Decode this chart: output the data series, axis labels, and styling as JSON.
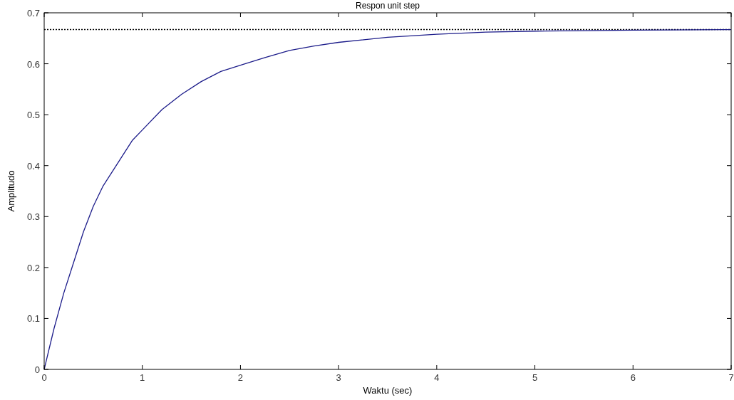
{
  "chart_data": {
    "type": "line",
    "title": "Respon unit step",
    "xlabel": "Waktu (sec)",
    "ylabel": "Amplitudo",
    "xlim": [
      0,
      7
    ],
    "xticks": [
      0,
      1,
      2,
      3,
      4,
      5,
      6,
      7
    ],
    "ylim": [
      0,
      0.7
    ],
    "yticks": [
      0,
      0.1,
      0.2,
      0.3,
      0.4,
      0.5,
      0.6,
      0.7
    ],
    "grid": false,
    "line_style": "solid",
    "x": [
      0,
      0.1,
      0.2,
      0.3,
      0.4,
      0.5,
      0.6,
      0.7,
      0.8,
      0.9,
      1.0,
      1.2,
      1.4,
      1.6,
      1.8,
      2.0,
      2.25,
      2.5,
      2.75,
      3.0,
      3.5,
      4.0,
      4.5,
      5.0,
      6.0,
      7.0
    ],
    "series": [
      {
        "color": "#1c1c8a",
        "values": [
          0,
          0.08,
          0.15,
          0.21,
          0.27,
          0.32,
          0.36,
          0.39,
          0.42,
          0.45,
          0.47,
          0.51,
          0.54,
          0.565,
          0.585,
          0.597,
          0.612,
          0.626,
          0.635,
          0.642,
          0.652,
          0.658,
          0.662,
          0.664,
          0.666,
          0.667
        ]
      }
    ],
    "ref_lines": [
      {
        "axis": "y",
        "value": 0.667,
        "color": "#000000",
        "line_style": "dotted"
      }
    ]
  }
}
